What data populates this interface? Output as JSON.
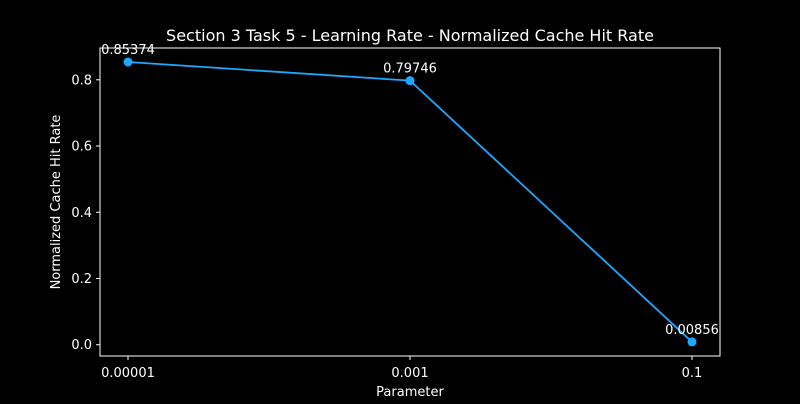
{
  "chart_data": {
    "type": "line",
    "title": "Section 3 Task 5 - Learning Rate - Normalized Cache Hit Rate",
    "xlabel": "Parameter",
    "ylabel": "Normalized Cache Hit Rate",
    "categories": [
      "0.00001",
      "0.001",
      "0.1"
    ],
    "series": [
      {
        "values": [
          0.85374,
          0.79746,
          0.00856
        ],
        "labels": [
          "0.85374",
          "0.79746",
          "0.00856"
        ],
        "color": "#1ea7ff"
      }
    ],
    "yticks": [
      0.0,
      0.2,
      0.4,
      0.6,
      0.8
    ],
    "ytick_labels": [
      "0.0",
      "0.2",
      "0.4",
      "0.6",
      "0.8"
    ],
    "ylim": [
      -0.034,
      0.896
    ],
    "grid": false,
    "colors": {
      "background": "#000000",
      "axes": "#ffffff",
      "text": "#ffffff"
    }
  }
}
